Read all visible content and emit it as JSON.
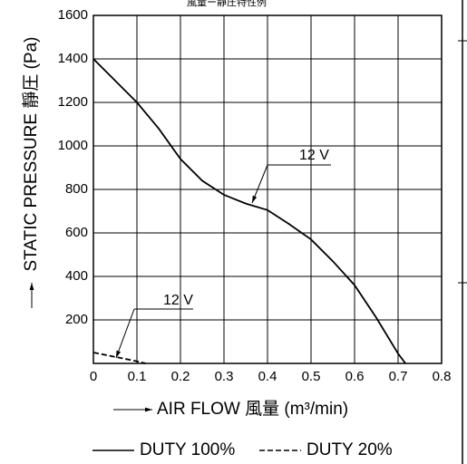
{
  "chart_data": {
    "type": "line",
    "title": "風量ー靜圧特性例",
    "x_label": "AIR FLOW 風量 (m³/min)",
    "y_label": "STATIC PRESSURE 靜圧 (Pa)",
    "series": [
      {
        "name": "DUTY 100%",
        "color": "#000000",
        "dash": "solid",
        "x": [
          0,
          0.05,
          0.1,
          0.15,
          0.2,
          0.25,
          0.3,
          0.35,
          0.4,
          0.45,
          0.5,
          0.55,
          0.6,
          0.65,
          0.7,
          0.717
        ],
        "values": [
          1400,
          1300,
          1200,
          1080,
          940,
          840,
          775,
          735,
          705,
          640,
          570,
          470,
          360,
          210,
          45,
          0
        ]
      },
      {
        "name": "DUTY 20%",
        "color": "#000000",
        "dash": "dashed",
        "x": [
          0,
          0.05,
          0.1,
          0.12
        ],
        "values": [
          50,
          30,
          10,
          0
        ]
      }
    ],
    "annotations": [
      "12 V",
      "12 V"
    ],
    "xlim": [
      0,
      0.8
    ],
    "xticks": [
      0,
      0.1,
      0.2,
      0.3,
      0.4,
      0.5,
      0.6,
      0.7,
      0.8
    ],
    "ylim": [
      0,
      1600
    ],
    "yticks": [
      200,
      400,
      600,
      800,
      1000,
      1200,
      1400,
      1600
    ],
    "grid": true
  }
}
